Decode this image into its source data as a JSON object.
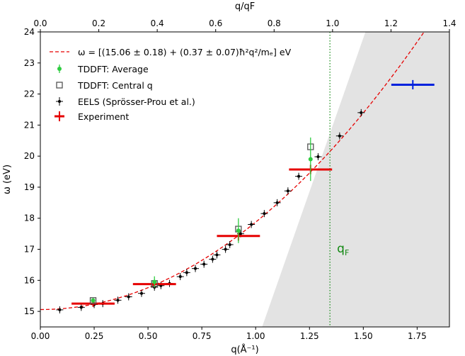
{
  "chart_data": {
    "type": "scatter",
    "xlabel": "q(Å⁻¹)",
    "ylabel": "ω (eV)",
    "top_xlabel": "q/qF",
    "xlim": [
      0.0,
      1.9
    ],
    "ylim": [
      14.5,
      24.0
    ],
    "top_xlim": [
      0.0,
      1.4
    ],
    "x_ticks": [
      "0.00",
      "0.25",
      "0.50",
      "0.75",
      "1.00",
      "1.25",
      "1.50",
      "1.75"
    ],
    "y_ticks": [
      "15",
      "16",
      "17",
      "18",
      "19",
      "20",
      "21",
      "22",
      "23",
      "24"
    ],
    "top_ticks": [
      "0.0",
      "0.2",
      "0.4",
      "0.6",
      "0.8",
      "1.0",
      "1.2",
      "1.4"
    ],
    "grid": false,
    "legend_placement": "top-left",
    "fit_label": "ω = [(15.06 ± 0.18) + (0.37 ± 0.07)ħ²q²/mₑ] eV",
    "fit_curve": {
      "a": 15.06,
      "b": 2.814,
      "x_range": [
        0.0,
        1.78
      ]
    },
    "qF_line": {
      "x": 1.345,
      "label": "qF"
    },
    "shaded_region": {
      "upper_boundary": [
        [
          1.03,
          14.5
        ],
        [
          1.51,
          24.0
        ]
      ]
    },
    "series": [
      {
        "name": "TDDFT: Average",
        "color": "#2ecc40",
        "points": [
          {
            "x": 0.245,
            "y": 15.35,
            "err": 0.08
          },
          {
            "x": 0.53,
            "y": 15.95,
            "err": 0.18
          },
          {
            "x": 0.92,
            "y": 17.6,
            "err": 0.4
          },
          {
            "x": 1.255,
            "y": 19.9,
            "err": 0.7
          }
        ]
      },
      {
        "name": "TDDFT: Central q",
        "color": "#555555",
        "points": [
          {
            "x": 0.245,
            "y": 15.35
          },
          {
            "x": 0.53,
            "y": 15.9
          },
          {
            "x": 0.92,
            "y": 17.65
          },
          {
            "x": 1.255,
            "y": 20.3
          }
        ]
      },
      {
        "name": "EELS (Sprösser-Prou et al.)",
        "color": "#000000",
        "points": [
          {
            "x": 0.09,
            "y": 15.05
          },
          {
            "x": 0.19,
            "y": 15.13
          },
          {
            "x": 0.25,
            "y": 15.22
          },
          {
            "x": 0.29,
            "y": 15.25
          },
          {
            "x": 0.36,
            "y": 15.36
          },
          {
            "x": 0.41,
            "y": 15.47
          },
          {
            "x": 0.47,
            "y": 15.58
          },
          {
            "x": 0.53,
            "y": 15.78
          },
          {
            "x": 0.56,
            "y": 15.83
          },
          {
            "x": 0.6,
            "y": 15.9
          },
          {
            "x": 0.65,
            "y": 16.12
          },
          {
            "x": 0.68,
            "y": 16.25
          },
          {
            "x": 0.72,
            "y": 16.38
          },
          {
            "x": 0.76,
            "y": 16.52
          },
          {
            "x": 0.8,
            "y": 16.68
          },
          {
            "x": 0.82,
            "y": 16.82
          },
          {
            "x": 0.86,
            "y": 17.0
          },
          {
            "x": 0.88,
            "y": 17.15
          },
          {
            "x": 0.93,
            "y": 17.5
          },
          {
            "x": 0.98,
            "y": 17.8
          },
          {
            "x": 1.04,
            "y": 18.15
          },
          {
            "x": 1.1,
            "y": 18.5
          },
          {
            "x": 1.15,
            "y": 18.88
          },
          {
            "x": 1.2,
            "y": 19.35
          },
          {
            "x": 1.29,
            "y": 19.98
          },
          {
            "x": 1.39,
            "y": 20.65
          },
          {
            "x": 1.49,
            "y": 21.4
          }
        ]
      },
      {
        "name": "Experiment",
        "color": "#e60000",
        "points": [
          {
            "x": 0.245,
            "y": 15.25,
            "xerr": 0.1,
            "yerr": 0.1
          },
          {
            "x": 0.53,
            "y": 15.88,
            "xerr": 0.1,
            "yerr": 0.1
          },
          {
            "x": 0.92,
            "y": 17.43,
            "xerr": 0.1,
            "yerr": 0.15
          },
          {
            "x": 1.255,
            "y": 19.57,
            "xerr": 0.1,
            "yerr": 0.15
          }
        ]
      },
      {
        "name": "",
        "color": "#0022dd",
        "points": [
          {
            "x": 1.73,
            "y": 22.3,
            "xerr": 0.1,
            "yerr": 0.15
          }
        ]
      }
    ],
    "legend": [
      {
        "key": "fit",
        "label": "ω = [(15.06 ± 0.18) + (0.37 ± 0.07)ħ²q²/mₑ] eV"
      },
      {
        "key": "tddft_avg",
        "label": "TDDFT: Average"
      },
      {
        "key": "tddft_central",
        "label": "TDDFT: Central q"
      },
      {
        "key": "eels",
        "label": "EELS (Sprösser-Prou et al.)"
      },
      {
        "key": "experiment",
        "label": "Experiment"
      }
    ]
  }
}
